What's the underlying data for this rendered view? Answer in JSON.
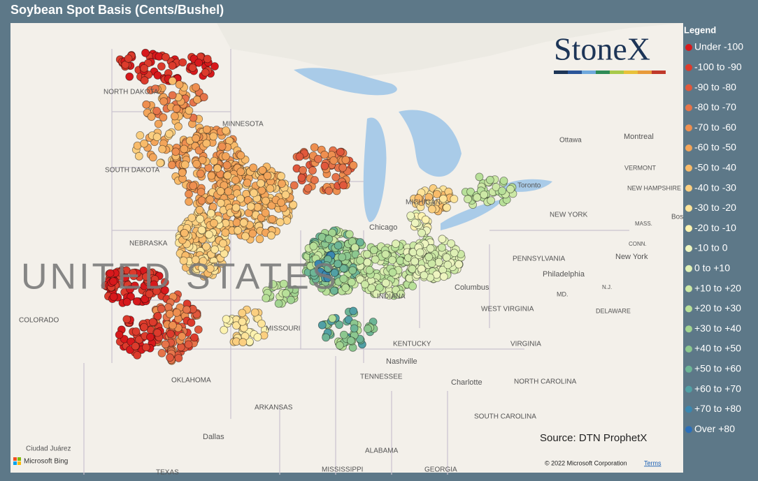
{
  "title": "Soybean Spot Basis (Cents/Bushel)",
  "legend": {
    "title": "Legend",
    "items": [
      {
        "label": "Under -100",
        "color": "#d7191c"
      },
      {
        "label": "-100 to -90",
        "color": "#dc3b2c"
      },
      {
        "label": "-90 to -80",
        "color": "#e0583c"
      },
      {
        "label": "-80 to -70",
        "color": "#e6744a"
      },
      {
        "label": "-70 to -60",
        "color": "#ee8f50"
      },
      {
        "label": "-60 to -50",
        "color": "#f3a55a"
      },
      {
        "label": "-50 to -40",
        "color": "#f8bb6a"
      },
      {
        "label": "-40 to -30",
        "color": "#fbcf80"
      },
      {
        "label": "-30 to -20",
        "color": "#fde49a"
      },
      {
        "label": "-20 to -10",
        "color": "#fdf3b0"
      },
      {
        "label": "-10 to 0",
        "color": "#eef5c0"
      },
      {
        "label": "0 to +10",
        "color": "#dff0b5"
      },
      {
        "label": "+10 to +20",
        "color": "#cce8a5"
      },
      {
        "label": "+20 to +30",
        "color": "#b8e099"
      },
      {
        "label": "+30 to +40",
        "color": "#a2d491"
      },
      {
        "label": "+40 to +50",
        "color": "#8cc78f"
      },
      {
        "label": "+50 to +60",
        "color": "#6db596"
      },
      {
        "label": "+60 to +70",
        "color": "#51a0a5"
      },
      {
        "label": "+70 to +80",
        "color": "#3a87b0"
      },
      {
        "label": "Over +80",
        "color": "#2b6fba"
      }
    ]
  },
  "map": {
    "labels": [
      "NORTH DAKOTA",
      "MINNESOTA",
      "SOUTH DAKOTA",
      "NEBRASKA",
      "COLORADO",
      "UNITED STATES",
      "MISSOURI",
      "KENTUCKY",
      "TENNESSEE",
      "ARKANSAS",
      "OKLAHOMA",
      "WEST VIRGINIA",
      "VIRGINIA",
      "NORTH CAROLINA",
      "SOUTH CAROLINA",
      "PENNSYLVANIA",
      "NEW YORK",
      "VERMONT",
      "NEW HAMPSHIRE",
      "MASS.",
      "CONN.",
      "DELAWARE",
      "MD.",
      "N.J.",
      "ALABAMA",
      "MISSISSIPPI",
      "GEORGIA",
      "TEXAS",
      "INDIANA",
      "MICHIGAN",
      "Chicago",
      "Columbus",
      "Nashville",
      "Charlotte",
      "Philadelphia",
      "New York",
      "Ottawa",
      "Montreal",
      "Toronto",
      "Dallas",
      "Ciudad Juárez",
      "Bos"
    ]
  },
  "logo": "StoneX",
  "source": "Source: DTN ProphetX",
  "bing": "Microsoft Bing",
  "copyright": "© 2022 Microsoft Corporation",
  "terms": "Terms"
}
